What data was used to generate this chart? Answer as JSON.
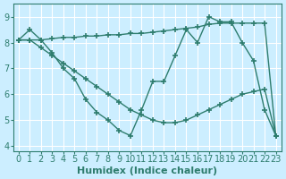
{
  "xlabel": "Humidex (Indice chaleur)",
  "bg_color": "#cceeff",
  "grid_color": "#ffffff",
  "line_color": "#2e7d6e",
  "marker": "+",
  "markersize": 4,
  "linewidth": 1.0,
  "xlim": [
    -0.5,
    23.5
  ],
  "ylim": [
    3.8,
    9.5
  ],
  "yticks": [
    4,
    5,
    6,
    7,
    8,
    9
  ],
  "xticks": [
    0,
    1,
    2,
    3,
    4,
    5,
    6,
    7,
    8,
    9,
    10,
    11,
    12,
    13,
    14,
    15,
    16,
    17,
    18,
    19,
    20,
    21,
    22,
    23
  ],
  "line1_x": [
    0,
    1,
    2,
    3,
    4,
    5,
    6,
    7,
    8,
    9,
    10,
    11,
    12,
    13,
    14,
    15,
    16,
    17,
    18,
    19,
    20,
    21,
    22,
    23
  ],
  "line1_y": [
    8.1,
    8.5,
    8.1,
    7.6,
    7.0,
    6.6,
    5.8,
    5.3,
    5.0,
    4.6,
    4.4,
    5.4,
    6.5,
    6.5,
    7.5,
    8.5,
    8.0,
    9.0,
    8.8,
    8.8,
    8.0,
    7.3,
    5.4,
    4.4
  ],
  "line2_x": [
    0,
    1,
    2,
    3,
    4,
    5,
    6,
    7,
    8,
    9,
    10,
    11,
    12,
    13,
    14,
    15,
    16,
    17,
    18,
    19,
    20,
    21,
    22,
    23
  ],
  "line2_y": [
    8.1,
    8.1,
    8.1,
    8.15,
    8.2,
    8.2,
    8.25,
    8.25,
    8.3,
    8.3,
    8.35,
    8.35,
    8.4,
    8.45,
    8.5,
    8.55,
    8.6,
    8.7,
    8.75,
    8.75,
    8.75,
    8.75,
    8.75,
    4.4
  ],
  "line3_x": [
    0,
    1,
    2,
    3,
    4,
    5,
    6,
    7,
    8,
    9,
    10,
    11,
    12,
    13,
    14,
    15,
    16,
    17,
    18,
    19,
    20,
    21,
    22,
    23
  ],
  "line3_y": [
    8.1,
    8.1,
    7.8,
    7.5,
    7.2,
    6.9,
    6.6,
    6.3,
    6.0,
    5.7,
    5.4,
    5.2,
    5.0,
    4.9,
    4.9,
    5.0,
    5.2,
    5.4,
    5.6,
    5.8,
    6.0,
    6.1,
    6.2,
    4.4
  ],
  "tick_fontsize": 7,
  "label_fontsize": 8
}
